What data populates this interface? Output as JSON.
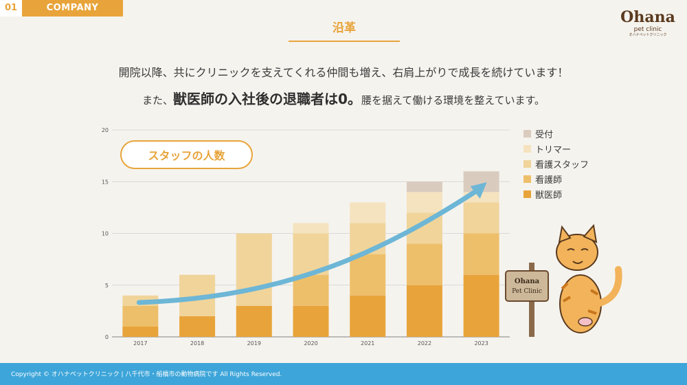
{
  "header": {
    "section_number": "01",
    "section_label": "COMPANY",
    "title": "沿革"
  },
  "logo": {
    "name": "Ohana",
    "sub": "pet clinic",
    "sub_jp": "オハナペットクリニック",
    "sign_text": "Ohana Pet Clinic"
  },
  "intro": {
    "line1": "開院以降、共にクリニックを支えてくれる仲間も増え、右肩上がりで成長を続けています！",
    "line2_pre": "また、",
    "line2_em": "獣医師の入社後の退職者は0。",
    "line2_post": "腰を据えて働ける環境を整えています。"
  },
  "chart_badge": "スタッフの人数",
  "colors": {
    "受付": "#d9ccbf",
    "トリマー": "#f5e3bf",
    "看護スタッフ": "#f0d49a",
    "看護師": "#eebf6a",
    "獣医師": "#e8a43a",
    "arrow": "#6db6d6"
  },
  "chart_data": {
    "type": "bar",
    "stacked": true,
    "categories": [
      "2017",
      "2018",
      "2019",
      "2020",
      "2021",
      "2022",
      "2023"
    ],
    "series": [
      {
        "name": "獣医師",
        "values": [
          1,
          2,
          3,
          3,
          4,
          5,
          6
        ]
      },
      {
        "name": "看護師",
        "values": [
          2,
          0,
          0,
          3,
          4,
          4,
          4
        ]
      },
      {
        "name": "看護スタッフ",
        "values": [
          1,
          4,
          7,
          4,
          3,
          3,
          3
        ]
      },
      {
        "name": "トリマー",
        "values": [
          0,
          0,
          0,
          1,
          2,
          2,
          1
        ]
      },
      {
        "name": "受付",
        "values": [
          0,
          0,
          0,
          0,
          0,
          1,
          2
        ]
      }
    ],
    "ylim": [
      0,
      20
    ],
    "yticks": [
      0,
      5,
      10,
      15,
      20
    ],
    "grid": true,
    "legend": "right"
  },
  "footer": {
    "copyright": "Copyright © オハナペットクリニック | 八千代市・船橋市の動物病院です All Rights Reserved."
  }
}
